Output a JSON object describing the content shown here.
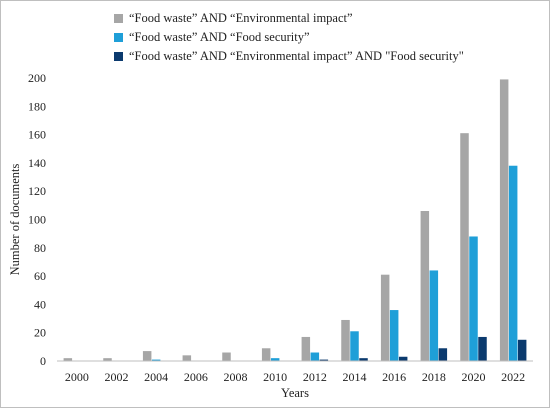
{
  "chart_data": {
    "type": "bar",
    "categories": [
      "2000",
      "2002",
      "2004",
      "2006",
      "2008",
      "2010",
      "2012",
      "2014",
      "2016",
      "2018",
      "2020",
      "2022"
    ],
    "series": [
      {
        "name": "“Food waste” AND “Environmental impact”",
        "color": "#a6a6a6",
        "values": [
          2,
          2,
          7,
          4,
          6,
          9,
          17,
          29,
          61,
          106,
          161,
          199
        ]
      },
      {
        "name": "“Food waste” AND “Food security”",
        "color": "#1f9fd8",
        "values": [
          0,
          0,
          1,
          0,
          0,
          2,
          6,
          21,
          36,
          64,
          88,
          138
        ]
      },
      {
        "name": "“Food waste” AND “Environmental impact” AND \"Food security\"",
        "color": "#0b3a6e",
        "values": [
          0,
          0,
          0,
          0,
          0,
          0,
          1,
          2,
          3,
          9,
          17,
          15
        ]
      }
    ],
    "xlabel": "Years",
    "ylabel": "Number of documents",
    "ylim": [
      0,
      200
    ],
    "yticks": [
      0,
      20,
      40,
      60,
      80,
      100,
      120,
      140,
      160,
      180,
      200
    ],
    "grid": false,
    "legend_position": "top-left"
  }
}
